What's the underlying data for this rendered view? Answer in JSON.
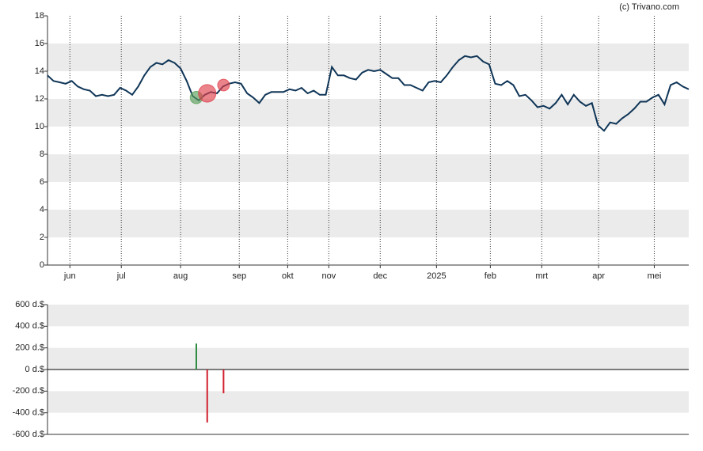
{
  "credit": "(c) Trivano.com",
  "chart_data": [
    {
      "type": "line",
      "xlim": [
        0,
        106
      ],
      "xticks": [
        {
          "value": 3.7,
          "label": "jun"
        },
        {
          "value": 12.2,
          "label": "jul"
        },
        {
          "value": 22,
          "label": "aug"
        },
        {
          "value": 31.7,
          "label": "sep"
        },
        {
          "value": 39.7,
          "label": "okt"
        },
        {
          "value": 46.5,
          "label": "nov"
        },
        {
          "value": 55,
          "label": "dec"
        },
        {
          "value": 64.3,
          "label": "2025"
        },
        {
          "value": 73.2,
          "label": "feb"
        },
        {
          "value": 81.7,
          "label": "mrt"
        },
        {
          "value": 91.1,
          "label": "apr"
        },
        {
          "value": 100.3,
          "label": "mei"
        }
      ],
      "ylim": [
        0,
        18
      ],
      "yticks": [
        0,
        2,
        4,
        6,
        8,
        10,
        12,
        14,
        16,
        18
      ],
      "grid": true,
      "series": [
        {
          "color": "#0f3557",
          "values": [
            13.7,
            13.3,
            13.2,
            13.1,
            13.3,
            12.9,
            12.7,
            12.6,
            12.2,
            12.3,
            12.2,
            12.3,
            12.8,
            12.6,
            12.3,
            12.9,
            13.7,
            14.3,
            14.6,
            14.5,
            14.8,
            14.6,
            14.2,
            13.3,
            12.2,
            11.9,
            12.3,
            12.5,
            12.4,
            12.9,
            13.1,
            13.2,
            13.1,
            12.4,
            12.1,
            11.7,
            12.3,
            12.5,
            12.5,
            12.5,
            12.7,
            12.6,
            12.8,
            12.4,
            12.6,
            12.3,
            12.3,
            14.3,
            13.7,
            13.7,
            13.5,
            13.4,
            13.9,
            14.1,
            14.0,
            14.1,
            13.8,
            13.5,
            13.5,
            13.0,
            13.0,
            12.8,
            12.6,
            13.2,
            13.3,
            13.2,
            13.7,
            14.3,
            14.8,
            15.1,
            15.0,
            15.1,
            14.7,
            14.5,
            13.1,
            13.0,
            13.3,
            13.0,
            12.2,
            12.3,
            11.9,
            11.4,
            11.5,
            11.3,
            11.7,
            12.3,
            11.6,
            12.3,
            11.8,
            11.5,
            11.7,
            10.1,
            9.7,
            10.3,
            10.2,
            10.6,
            10.9,
            11.3,
            11.8,
            11.8,
            12.1,
            12.3,
            11.6,
            13.0,
            13.2,
            12.9,
            12.7
          ]
        }
      ],
      "trades": {
        "x": [
          24.6,
          26.4,
          29.1
        ],
        "values": [
          12.1,
          12.4,
          13.0
        ],
        "sizes": [
          240,
          -490,
          -220
        ],
        "colors": [
          "#5aa05a",
          "#e0404c",
          "#e0404c"
        ]
      }
    },
    {
      "type": "bar",
      "xlim": [
        0,
        106
      ],
      "ylim": [
        -600,
        600
      ],
      "yticks": [
        {
          "value": -600,
          "label": "-600 d.$"
        },
        {
          "value": -400,
          "label": "-400 d.$"
        },
        {
          "value": -200,
          "label": "-200 d.$"
        },
        {
          "value": 0,
          "label": "0 d.$"
        },
        {
          "value": 200,
          "label": "200 d.$"
        },
        {
          "value": 400,
          "label": "400 d.$"
        },
        {
          "value": 600,
          "label": "600 d.$"
        }
      ],
      "grid": true,
      "x": [
        24.6,
        26.4,
        29.1
      ],
      "values": [
        240,
        -490,
        -220
      ],
      "colors": [
        "#2e8b3e",
        "#d0202e",
        "#d0202e"
      ]
    }
  ]
}
